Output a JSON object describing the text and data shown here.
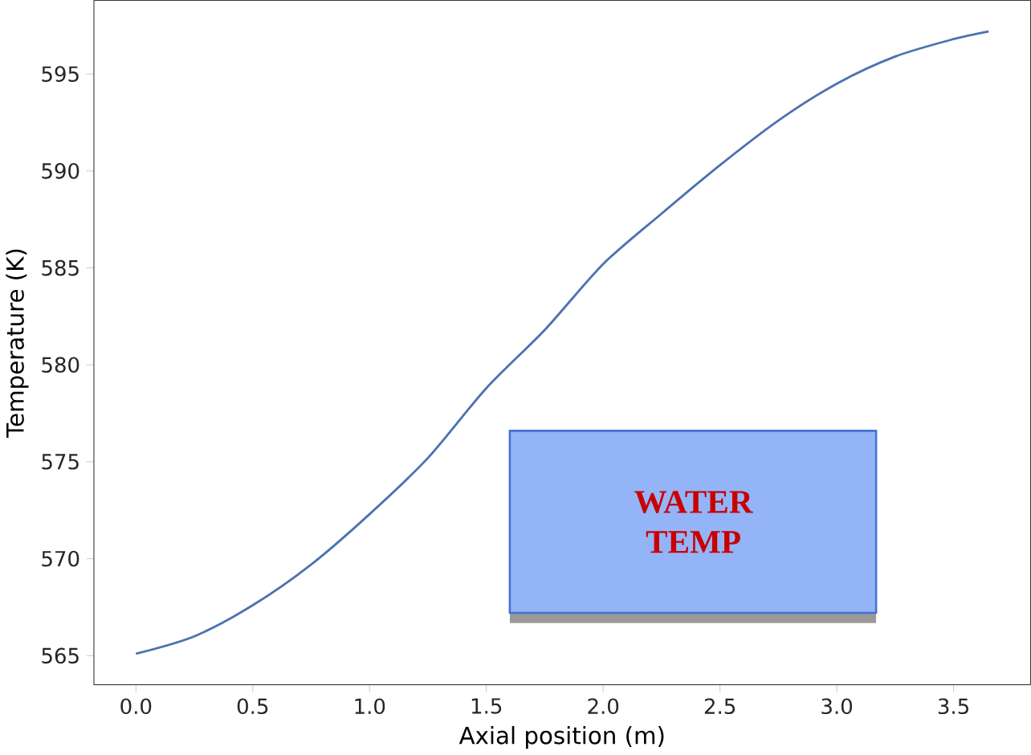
{
  "chart_data": {
    "type": "line",
    "xlabel": "Axial position (m)",
    "ylabel": "Temperature (K)",
    "x": [
      0,
      0.25,
      0.5,
      0.75,
      1.0,
      1.25,
      1.5,
      1.75,
      2.0,
      2.25,
      2.5,
      2.75,
      3.0,
      3.25,
      3.5,
      3.65
    ],
    "series": [
      {
        "color": "#4c72b0",
        "values": [
          565.1,
          566.0,
          567.6,
          569.7,
          572.3,
          575.2,
          578.8,
          581.8,
          585.2,
          587.8,
          590.3,
          592.6,
          594.5,
          595.9,
          596.8,
          597.2
        ]
      }
    ],
    "xlim": [
      -0.18,
      3.83
    ],
    "ylim": [
      563.5,
      598.8
    ],
    "xticks": [
      {
        "value": 0,
        "label": "0.0"
      },
      {
        "value": 0.5,
        "label": "0.5"
      },
      {
        "value": 1,
        "label": "1.0"
      },
      {
        "value": 1.5,
        "label": "1.5"
      },
      {
        "value": 2,
        "label": "2.0"
      },
      {
        "value": 2.5,
        "label": "2.5"
      },
      {
        "value": 3,
        "label": "3.0"
      },
      {
        "value": 3.5,
        "label": "3.5"
      }
    ],
    "yticks": [
      565,
      570,
      575,
      580,
      585,
      590,
      595
    ],
    "grid": false,
    "marker": "none",
    "line_style": "solid",
    "annotations": [
      "WATER TEMP"
    ]
  }
}
